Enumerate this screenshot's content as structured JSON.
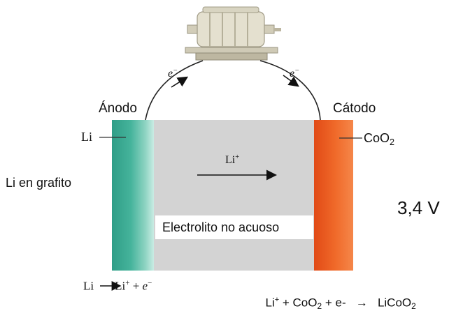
{
  "labels": {
    "anode": "Ánodo",
    "cathode": "Cátodo",
    "li_left": "Li",
    "coo2_base": "CoO",
    "coo2_sub": "2",
    "li_graphite": "Li en grafito",
    "voltage": "3,4 V",
    "electrolyte": "Electrolito no acuoso",
    "li_ion_base": "Li",
    "li_ion_sup": "+",
    "electron_base": "e",
    "electron_sup": "−"
  },
  "reactions": {
    "anode": {
      "reactant": "Li",
      "arrow": "→",
      "product_base": "Li",
      "product_sup": "+",
      "plus": " + ",
      "electron_base": "e",
      "electron_sup": "−"
    },
    "cathode": {
      "li_base": "Li",
      "li_sup": "+",
      "plus1": " + CoO",
      "coo2_sub": "2",
      "plus2": " + e-  ",
      "arrow": " → ",
      "product_base": "  LiCoO",
      "product_sub": "2"
    }
  },
  "colors": {
    "anode": "#45b39b",
    "cathode": "#f06a2a",
    "electrolyte": "#d3d3d3"
  },
  "icons": {
    "motor": "motor-icon"
  }
}
